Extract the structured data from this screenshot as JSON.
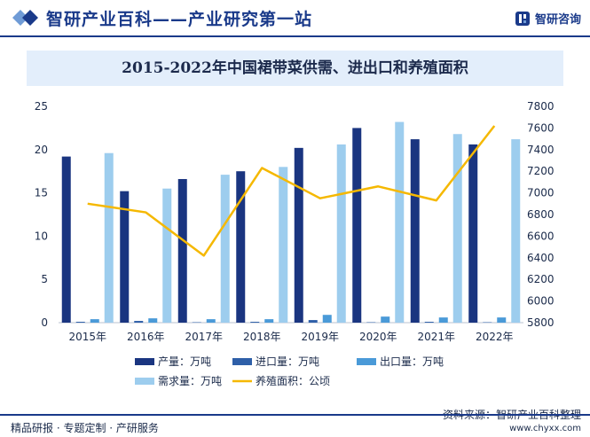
{
  "header": {
    "title": "智研产业百科——产业研究第一站",
    "brand_name": "智研咨询",
    "brand_icon": "zhiyan-logo-icon"
  },
  "colors": {
    "brand": "#1a3a8a",
    "title_bg": "#e3eefb",
    "output": "#1a3580",
    "import": "#2e5fa8",
    "export": "#4a9ad8",
    "demand": "#9dcdee",
    "area": "#f5b800"
  },
  "chart_data": {
    "type": "bar",
    "title": "2015-2022年中国裙带菜供需、进出口和养殖面积",
    "categories": [
      "2015年",
      "2016年",
      "2017年",
      "2018年",
      "2019年",
      "2020年",
      "2021年",
      "2022年"
    ],
    "series": [
      {
        "name": "产量：万吨",
        "type": "bar",
        "axis": "left",
        "values": [
          19.2,
          15.2,
          16.6,
          17.5,
          20.2,
          22.5,
          21.2,
          20.6
        ]
      },
      {
        "name": "进口量：万吨",
        "type": "bar",
        "axis": "left",
        "values": [
          0.1,
          0.2,
          0.05,
          0.1,
          0.3,
          0.05,
          0.1,
          0.05
        ]
      },
      {
        "name": "出口量：万吨",
        "type": "bar",
        "axis": "left",
        "values": [
          0.4,
          0.5,
          0.4,
          0.4,
          0.9,
          0.7,
          0.6,
          0.6
        ]
      },
      {
        "name": "需求量：万吨",
        "type": "bar",
        "axis": "left",
        "values": [
          19.6,
          15.5,
          17.1,
          18.0,
          20.6,
          23.2,
          21.8,
          21.2
        ]
      },
      {
        "name": "养殖面积：公顷",
        "type": "line",
        "axis": "right",
        "values": [
          6900,
          6820,
          6420,
          7230,
          6950,
          7060,
          6930,
          7620
        ]
      }
    ],
    "y_left": {
      "min": 0,
      "max": 25,
      "ticks": [
        0,
        5,
        10,
        15,
        20,
        25
      ]
    },
    "y_right": {
      "min": 5800,
      "max": 7800,
      "ticks": [
        5800,
        6000,
        6200,
        6400,
        6600,
        6800,
        7000,
        7200,
        7400,
        7600,
        7800
      ]
    },
    "grid": false,
    "legend_position": "bottom"
  },
  "footer": {
    "left": "精品研报 · 专题定制 · 产研服务",
    "source": "资料来源：智研产业百科整理",
    "url": "www.chyxx.com"
  }
}
